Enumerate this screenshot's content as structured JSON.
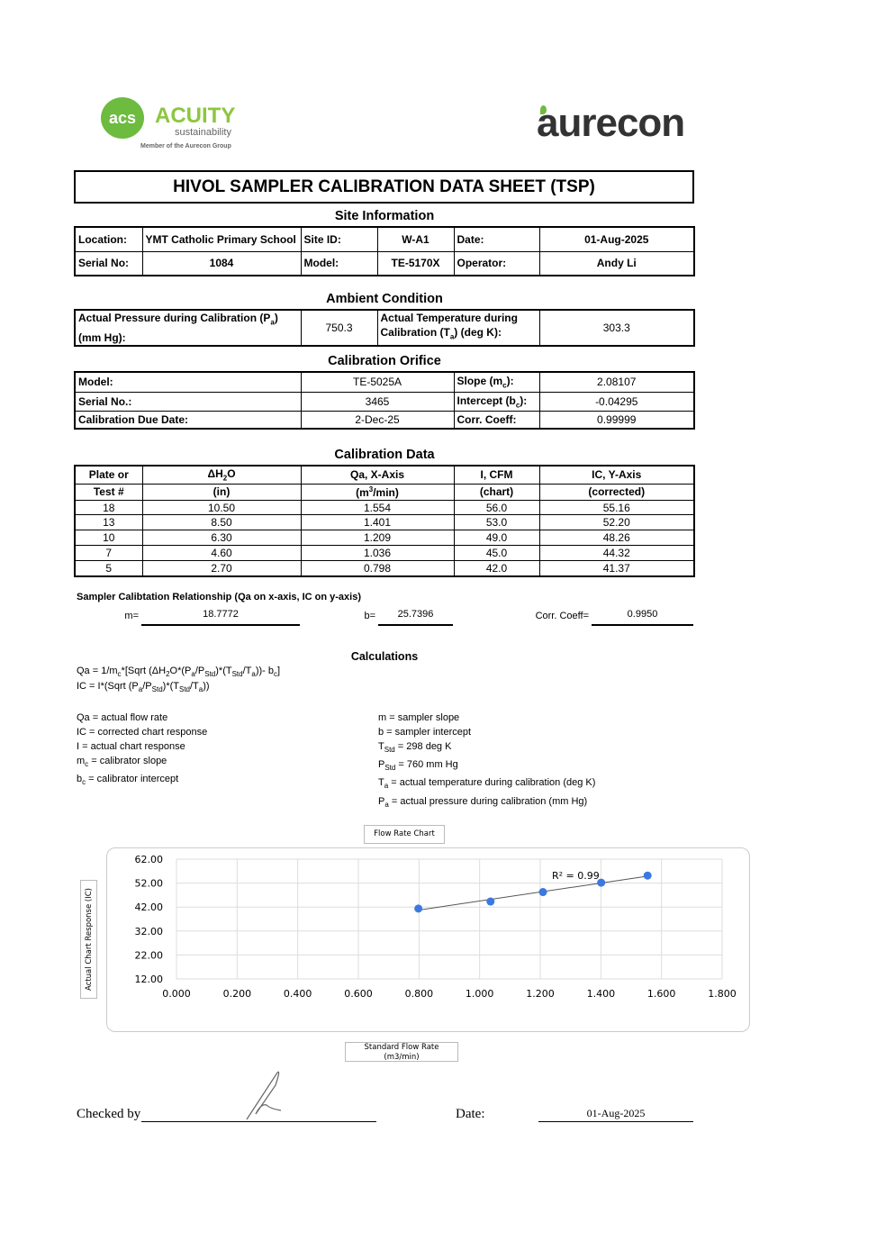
{
  "logos": {
    "acuity": {
      "mark": "acs",
      "name": "ACUITY",
      "sub": "sustainability",
      "tagline": "Member of the Aurecon Group"
    },
    "aurecon": "aurecon"
  },
  "title": "HIVOL SAMPLER CALIBRATION  DATA SHEET (TSP)",
  "site": {
    "heading": "Site Information",
    "location_label": "Location:",
    "location": "YMT Catholic Primary School",
    "site_id_label": "Site ID:",
    "site_id": "W-A1",
    "date_label": "Date:",
    "date": "01-Aug-2025",
    "serial_label": "Serial No:",
    "serial": "1084",
    "model_label": "Model:",
    "model": "TE-5170X",
    "operator_label": "Operator:",
    "operator": "Andy Li"
  },
  "ambient": {
    "heading": "Ambient Condition",
    "pressure_label": [
      "Actual Pressure during Calibration (P",
      {
        "sub": "a"
      },
      ")",
      {
        "br": 1
      },
      "(mm Hg):"
    ],
    "pressure": "750.3",
    "temp_label": [
      "Actual Temperature during",
      {
        "br": 1
      },
      "Calibration (T",
      {
        "sub": "a"
      },
      ") (deg K):"
    ],
    "temp": "303.3"
  },
  "orifice": {
    "heading": "Calibration Orifice",
    "model_label": "Model:",
    "model": "TE-5025A",
    "slope_label": [
      "Slope (m",
      {
        "sub": "c"
      },
      "):"
    ],
    "slope": "2.08107",
    "serial_label": "Serial No.:",
    "serial": "3465",
    "intercept_label": [
      "Intercept (b",
      {
        "sub": "c"
      },
      "):"
    ],
    "intercept": "-0.04295",
    "due_label": "Calibration Due Date:",
    "due": "2-Dec-25",
    "corr_label": "Corr. Coeff:",
    "corr": "0.99999"
  },
  "caldata": {
    "heading": "Calibration Data",
    "headers1": [
      [
        "Plate or"
      ],
      [
        "ΔH",
        {
          "sub": "2"
        },
        "O"
      ],
      [
        "Qa, X-Axis"
      ],
      [
        "I, CFM"
      ],
      [
        "IC, Y-Axis"
      ]
    ],
    "headers2": [
      [
        "Test #"
      ],
      [
        "(in)"
      ],
      [
        "(m",
        {
          "sup": "3"
        },
        "/min)"
      ],
      [
        "(chart)"
      ],
      [
        "(corrected)"
      ]
    ],
    "rows": [
      [
        "18",
        "10.50",
        "1.554",
        "56.0",
        "55.16"
      ],
      [
        "13",
        "8.50",
        "1.401",
        "53.0",
        "52.20"
      ],
      [
        "10",
        "6.30",
        "1.209",
        "49.0",
        "48.26"
      ],
      [
        "7",
        "4.60",
        "1.036",
        "45.0",
        "44.32"
      ],
      [
        "5",
        "2.70",
        "0.798",
        "42.0",
        "41.37"
      ]
    ]
  },
  "relationship": {
    "title": "Sampler Calibtation Relationship (Qa on x-axis, IC on y-axis)",
    "m_label": "m=",
    "m": "18.7772",
    "b_label": "b=",
    "b": "25.7396",
    "corr_label": "Corr. Coeff=",
    "corr": "0.9950"
  },
  "calculations": {
    "heading": "Calculations",
    "formula1": [
      "Qa = 1/m",
      {
        "sub": "c"
      },
      "*[Sqrt (ΔH",
      {
        "sub": "2"
      },
      "O*(P",
      {
        "sub": "a"
      },
      "/P",
      {
        "sub": "Std"
      },
      ")*(T",
      {
        "sub": "Std"
      },
      "/T",
      {
        "sub": "a"
      },
      "))- b",
      {
        "sub": "c"
      },
      "]"
    ],
    "formula2": [
      "IC = I*(Sqrt (P",
      {
        "sub": "a"
      },
      "/P",
      {
        "sub": "Std"
      },
      ")*(T",
      {
        "sub": "Std"
      },
      "/T",
      {
        "sub": "a"
      },
      "))"
    ],
    "left": [
      [
        "Qa = actual flow rate"
      ],
      [
        "IC = corrected chart response"
      ],
      [
        "I = actual chart response"
      ],
      [
        "m",
        {
          "sub": "c"
        },
        "  = calibrator slope"
      ],
      [
        "b",
        {
          "sub": "c"
        },
        "  = calibrator intercept"
      ]
    ],
    "right": [
      [
        "m = sampler slope"
      ],
      [
        "b  = sampler intercept"
      ],
      [
        "T",
        {
          "sub": "Std"
        },
        " = 298 deg K"
      ],
      [
        "P",
        {
          "sub": "Std"
        },
        " = 760 mm Hg"
      ],
      [
        "T",
        {
          "sub": "a"
        },
        " = actual temperature during calibration (deg K)"
      ],
      [
        "P",
        {
          "sub": "a"
        },
        " = actual pressure during calibration (mm Hg)"
      ]
    ]
  },
  "chart_data": {
    "type": "scatter",
    "title": "Flow Rate Chart",
    "xlabel": "Standard Flow Rate (m3/min)",
    "ylabel": "Actual Chart Response (IC)",
    "xlim": [
      0,
      1.8
    ],
    "ylim": [
      12,
      62
    ],
    "xticks": [
      "0.000",
      "0.200",
      "0.400",
      "0.600",
      "0.800",
      "1.000",
      "1.200",
      "1.400",
      "1.600",
      "1.800"
    ],
    "yticks": [
      "62.00",
      "52.00",
      "42.00",
      "32.00",
      "22.00",
      "12.00"
    ],
    "x": [
      1.554,
      1.401,
      1.209,
      1.036,
      0.798
    ],
    "y": [
      55.16,
      52.2,
      48.26,
      44.32,
      41.37
    ],
    "trendline": {
      "slope": 18.7772,
      "intercept": 25.7396,
      "label": "R² = 0.99"
    },
    "grid": true,
    "marker_color": "#3b78e0"
  },
  "footer": {
    "checked_label": "Checked by",
    "date_label": "Date:",
    "date": "01-Aug-2025"
  }
}
